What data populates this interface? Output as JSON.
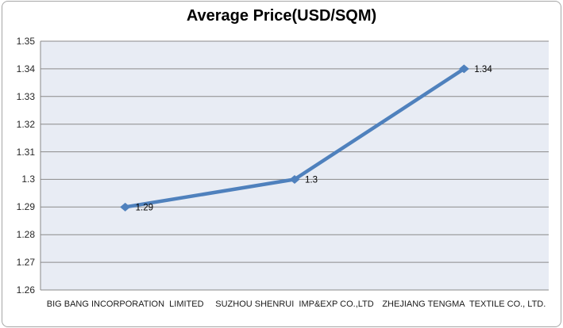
{
  "chart_data": {
    "type": "line",
    "title": "Average Price(USD/SQM)",
    "categories": [
      "BIG BANG INCORPORATION  LIMITED",
      "SUZHOU SHENRUI  IMP&EXP CO.,LTD",
      "ZHEJIANG TENGMA  TEXTILE CO., LTD."
    ],
    "values": [
      1.29,
      1.3,
      1.34
    ],
    "data_labels": [
      "1.29",
      "1.3",
      "1.34"
    ],
    "ylim": [
      1.26,
      1.35
    ],
    "yticks": [
      "1.35",
      "1.34",
      "1.33",
      "1.32",
      "1.31",
      "1.3",
      "1.29",
      "1.28",
      "1.27",
      "1.26"
    ],
    "xlabel": "",
    "ylabel": "",
    "grid": "horizontal",
    "legend": "none",
    "marker": "diamond",
    "colors": {
      "line": "#4F81BD",
      "marker": "#4F81BD",
      "plot_bg": "#E8ECF4",
      "grid": "#8A8A8A",
      "axis_line": "#8A8A8A",
      "title_text": "#000000",
      "tick_text": "#262626",
      "data_label_text": "#000000",
      "frame_border": "#A6A6A6",
      "background": "#FFFFFF"
    }
  }
}
